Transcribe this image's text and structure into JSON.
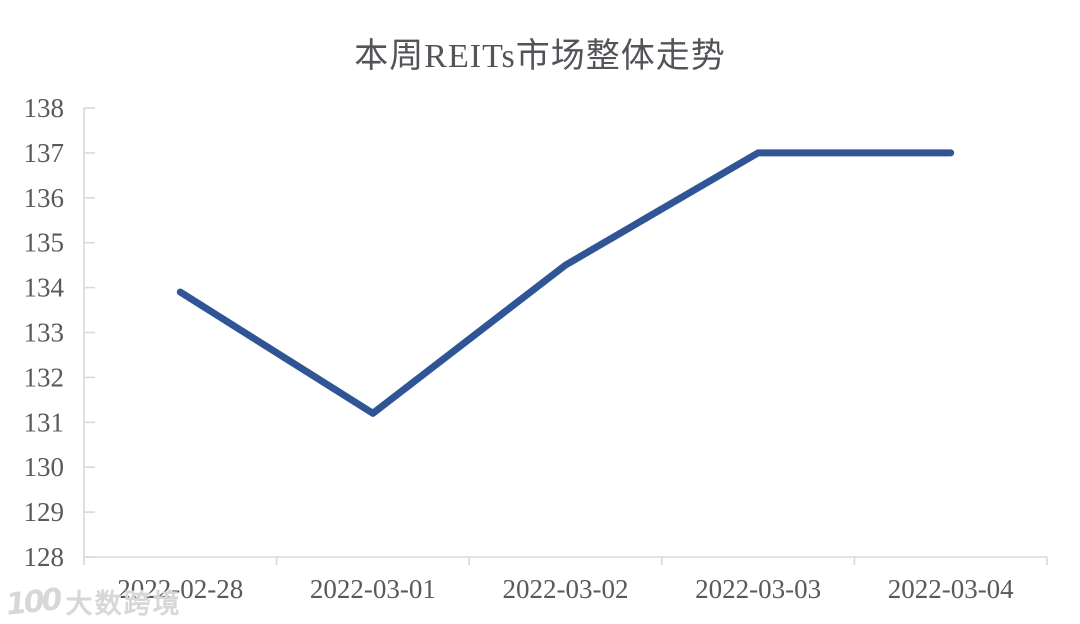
{
  "title": "本周REITs市场整体走势",
  "chart_data": {
    "type": "line",
    "categories": [
      "2022-02-28",
      "2022-03-01",
      "2022-03-02",
      "2022-03-03",
      "2022-03-04"
    ],
    "values": [
      133.9,
      131.2,
      134.5,
      137.0,
      137.0
    ],
    "series": [
      {
        "name": "REITs",
        "values": [
          133.9,
          131.2,
          134.5,
          137.0,
          137.0
        ]
      }
    ],
    "title": "本周REITs市场整体走势",
    "xlabel": "",
    "ylabel": "",
    "ylim": [
      128,
      138
    ],
    "yticks": [
      128,
      129,
      130,
      131,
      132,
      133,
      134,
      135,
      136,
      137,
      138
    ],
    "grid": false,
    "legend_position": "none",
    "line_color": "#2F5597"
  },
  "style": {
    "axis_color": "#D9D9D9",
    "tick_label_color": "#595959",
    "title_color": "#53535A",
    "background": "#FFFFFF"
  },
  "watermark": {
    "logo_text": "100",
    "brand_text": "大数跨境"
  }
}
